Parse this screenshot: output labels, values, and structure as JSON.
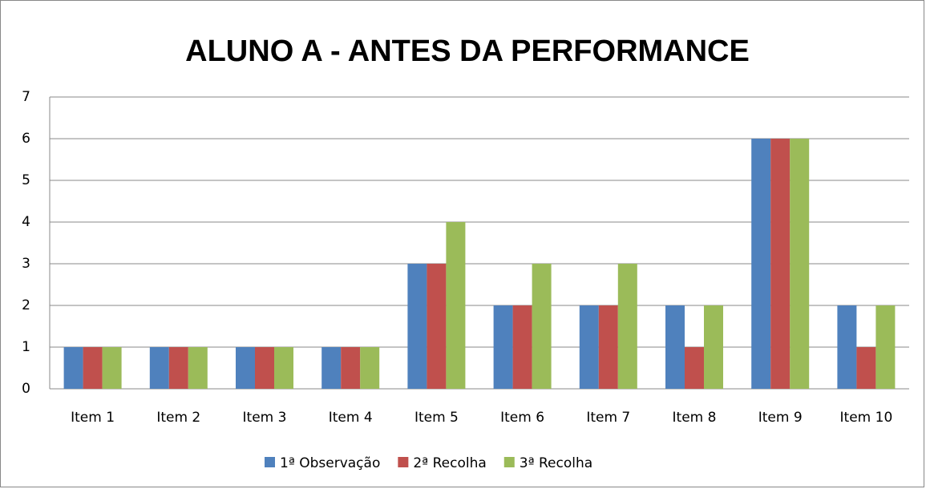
{
  "chart_data": {
    "type": "bar",
    "title": "ALUNO A - ANTES DA PERFORMANCE",
    "categories": [
      "Item 1",
      "Item 2",
      "Item 3",
      "Item 4",
      "Item 5",
      "Item 6",
      "Item 7",
      "Item 8",
      "Item 9",
      "Item 10"
    ],
    "series": [
      {
        "name": "1ª Observação",
        "color": "#4f81bd",
        "values": [
          1,
          1,
          1,
          1,
          3,
          2,
          2,
          2,
          6,
          2
        ]
      },
      {
        "name": "2ª Recolha",
        "color": "#c0504d",
        "values": [
          1,
          1,
          1,
          1,
          3,
          2,
          2,
          1,
          6,
          1
        ]
      },
      {
        "name": "3ª Recolha",
        "color": "#9bbb59",
        "values": [
          1,
          1,
          1,
          1,
          4,
          3,
          3,
          2,
          6,
          2
        ]
      }
    ],
    "ylim": [
      0,
      7
    ],
    "yticks": [
      0,
      1,
      2,
      3,
      4,
      5,
      6,
      7
    ],
    "grid": true,
    "legend": "bottom"
  }
}
